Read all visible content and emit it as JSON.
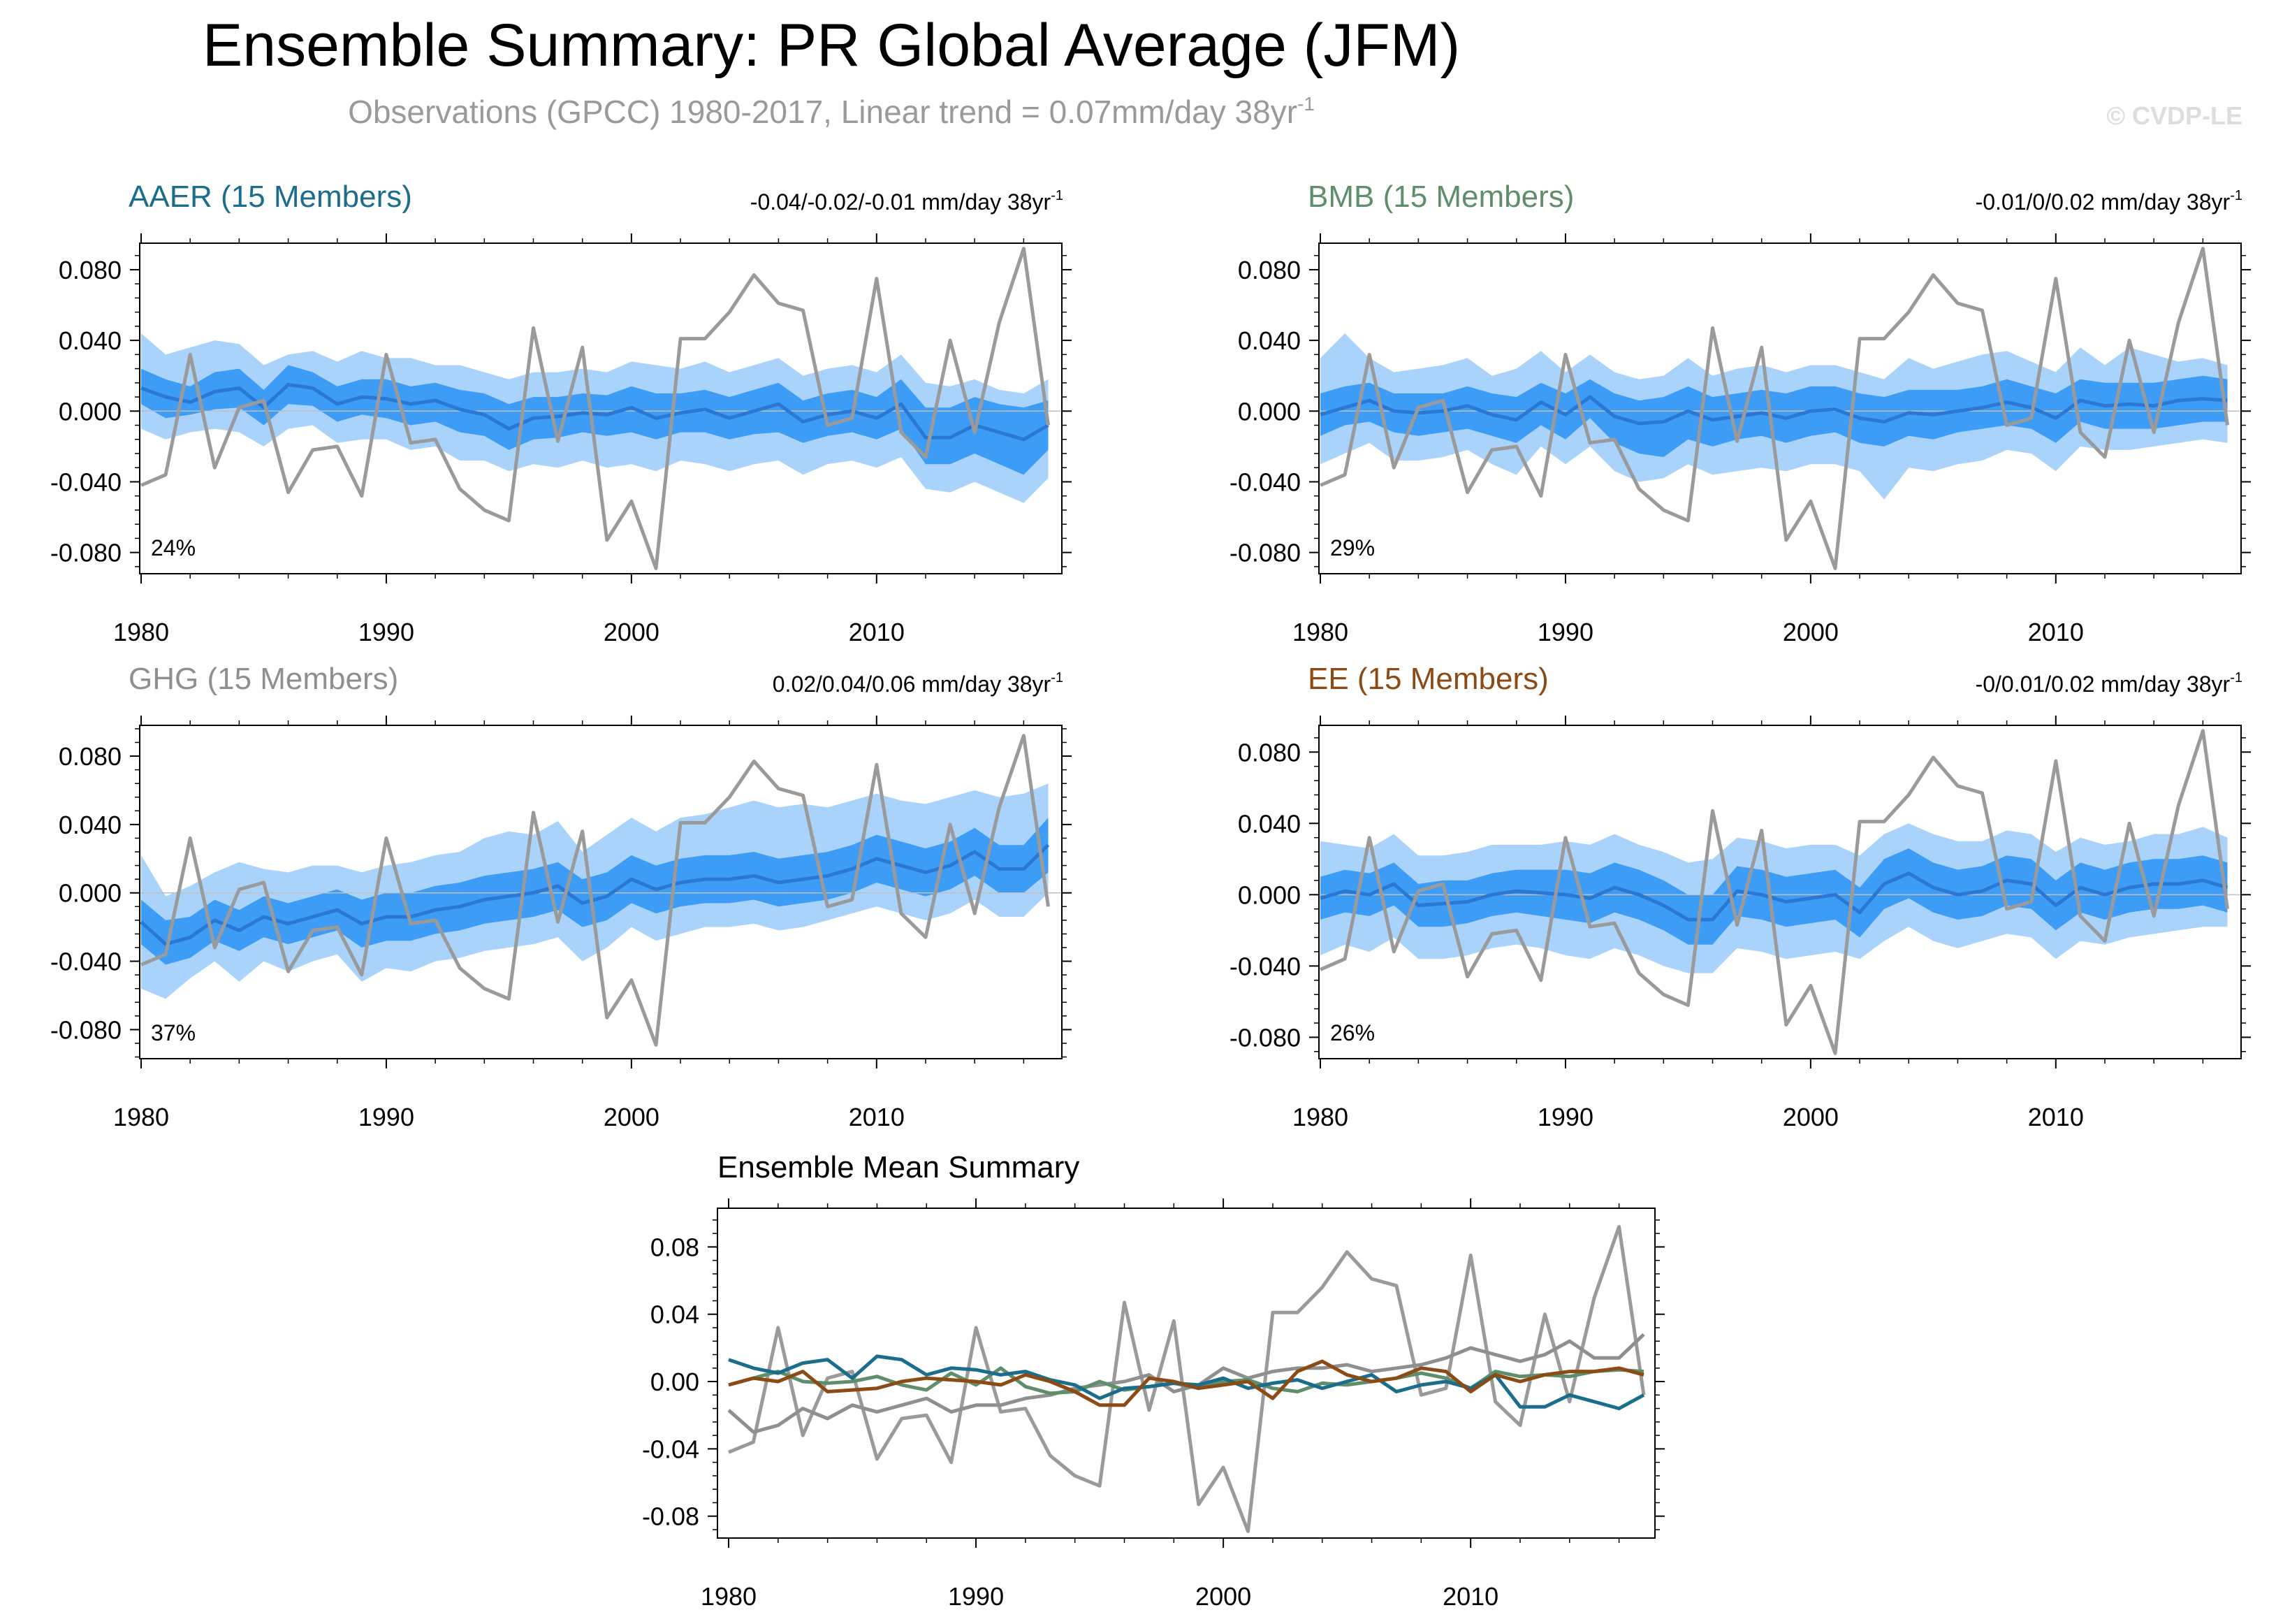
{
  "figure": {
    "title": "Ensemble Summary: PR Global Average (JFM)",
    "subtitle": "Observations (GPCC) 1980-2017, Linear trend = 0.07mm/day 38yr",
    "subtitle_sup": "-1",
    "watermark": "© CVDP-LE"
  },
  "colors": {
    "observation_line": "#9a9a9a",
    "band_outer": "#a9d3fb",
    "band_inner": "#3d9cf5",
    "ensemble_mean": "#2a78d4",
    "aaer": "#1b6d8c",
    "bmb": "#5f8f6a",
    "ghg": "#8f8f8f",
    "ee": "#8c4a14",
    "zero_line": "#bfbfbf"
  },
  "chart_data": {
    "years": [
      1980,
      1981,
      1982,
      1983,
      1984,
      1985,
      1986,
      1987,
      1988,
      1989,
      1990,
      1991,
      1992,
      1993,
      1994,
      1995,
      1996,
      1997,
      1998,
      1999,
      2000,
      2001,
      2002,
      2003,
      2004,
      2005,
      2006,
      2007,
      2008,
      2009,
      2010,
      2011,
      2012,
      2013,
      2014,
      2015,
      2016,
      2017
    ],
    "observations": [
      -0.042,
      -0.036,
      0.032,
      -0.032,
      0.002,
      0.006,
      -0.046,
      -0.022,
      -0.02,
      -0.048,
      0.032,
      -0.018,
      -0.016,
      -0.044,
      -0.056,
      -0.062,
      0.047,
      -0.017,
      0.036,
      -0.073,
      -0.051,
      -0.089,
      0.041,
      0.041,
      0.056,
      0.077,
      0.061,
      0.057,
      -0.008,
      -0.004,
      0.075,
      -0.012,
      -0.026,
      0.04,
      -0.012,
      0.05,
      0.092,
      -0.008
    ],
    "panels": [
      {
        "id": "aaer",
        "title": "AAER (15 Members)",
        "trend": "-0.04/-0.02/-0.01 mm/day 38yr",
        "trend_sup": "-1",
        "percent": "24%",
        "color_key": "aaer",
        "y_ticks": [
          "0.080",
          "0.040",
          "0.000",
          "-0.040",
          "-0.080"
        ],
        "y_tick_values": [
          0.08,
          0.04,
          0.0,
          -0.04,
          -0.08
        ],
        "ylim": [
          -0.092,
          0.095
        ],
        "x_ticks": [
          "1980",
          "1990",
          "2000",
          "2010"
        ],
        "mean": [
          0.013,
          0.008,
          0.005,
          0.011,
          0.013,
          0.002,
          0.015,
          0.013,
          0.004,
          0.008,
          0.007,
          0.004,
          0.006,
          0.001,
          -0.002,
          -0.01,
          -0.004,
          -0.003,
          -0.001,
          -0.002,
          0.002,
          -0.004,
          -0.001,
          0.001,
          -0.004,
          0.0,
          0.004,
          -0.006,
          -0.002,
          0.0,
          -0.004,
          0.004,
          -0.015,
          -0.015,
          -0.008,
          -0.012,
          -0.016,
          -0.008
        ],
        "inner_lo": [
          0.004,
          -0.004,
          -0.002,
          0.001,
          0.002,
          -0.008,
          0.004,
          0.003,
          -0.006,
          -0.002,
          -0.004,
          -0.008,
          -0.006,
          -0.012,
          -0.014,
          -0.022,
          -0.016,
          -0.015,
          -0.012,
          -0.014,
          -0.012,
          -0.016,
          -0.012,
          -0.012,
          -0.016,
          -0.013,
          -0.012,
          -0.018,
          -0.014,
          -0.012,
          -0.016,
          -0.01,
          -0.03,
          -0.03,
          -0.024,
          -0.03,
          -0.036,
          -0.022
        ],
        "inner_hi": [
          0.024,
          0.018,
          0.014,
          0.022,
          0.024,
          0.012,
          0.026,
          0.022,
          0.014,
          0.018,
          0.018,
          0.014,
          0.016,
          0.012,
          0.01,
          0.004,
          0.008,
          0.008,
          0.01,
          0.009,
          0.014,
          0.01,
          0.01,
          0.012,
          0.008,
          0.012,
          0.016,
          0.006,
          0.01,
          0.012,
          0.008,
          0.018,
          0.002,
          0.002,
          0.008,
          0.004,
          0.002,
          0.006
        ],
        "outer_lo": [
          -0.01,
          -0.016,
          -0.012,
          -0.01,
          -0.012,
          -0.02,
          -0.01,
          -0.008,
          -0.018,
          -0.016,
          -0.016,
          -0.022,
          -0.02,
          -0.028,
          -0.028,
          -0.034,
          -0.03,
          -0.032,
          -0.028,
          -0.032,
          -0.03,
          -0.034,
          -0.028,
          -0.03,
          -0.034,
          -0.03,
          -0.028,
          -0.036,
          -0.03,
          -0.028,
          -0.032,
          -0.026,
          -0.044,
          -0.046,
          -0.04,
          -0.046,
          -0.052,
          -0.038
        ],
        "outer_hi": [
          0.044,
          0.032,
          0.036,
          0.04,
          0.038,
          0.026,
          0.032,
          0.034,
          0.028,
          0.034,
          0.03,
          0.03,
          0.026,
          0.026,
          0.022,
          0.018,
          0.022,
          0.022,
          0.024,
          0.022,
          0.028,
          0.026,
          0.024,
          0.028,
          0.022,
          0.026,
          0.03,
          0.02,
          0.024,
          0.026,
          0.022,
          0.032,
          0.016,
          0.014,
          0.018,
          0.012,
          0.01,
          0.018
        ]
      },
      {
        "id": "bmb",
        "title": "BMB (15 Members)",
        "trend": "-0.01/0/0.02 mm/day 38yr",
        "trend_sup": "-1",
        "percent": "29%",
        "color_key": "bmb",
        "y_ticks": [
          "0.080",
          "0.040",
          "0.000",
          "-0.040",
          "-0.080"
        ],
        "y_tick_values": [
          0.08,
          0.04,
          0.0,
          -0.04,
          -0.08
        ],
        "ylim": [
          -0.092,
          0.095
        ],
        "x_ticks": [
          "1980",
          "1990",
          "2000",
          "2010"
        ],
        "mean": [
          -0.002,
          0.002,
          0.006,
          0.0,
          -0.001,
          0.0,
          0.003,
          -0.002,
          -0.005,
          0.005,
          -0.002,
          0.008,
          -0.003,
          -0.007,
          -0.006,
          0.0,
          -0.005,
          -0.003,
          -0.001,
          -0.004,
          0.0,
          0.001,
          -0.004,
          -0.006,
          -0.001,
          -0.002,
          0.0,
          0.002,
          0.005,
          0.002,
          -0.004,
          0.006,
          0.003,
          0.004,
          0.003,
          0.006,
          0.007,
          0.006
        ],
        "inner_lo": [
          -0.014,
          -0.008,
          -0.006,
          -0.012,
          -0.014,
          -0.012,
          -0.01,
          -0.014,
          -0.018,
          -0.008,
          -0.016,
          -0.004,
          -0.018,
          -0.024,
          -0.026,
          -0.016,
          -0.02,
          -0.016,
          -0.014,
          -0.018,
          -0.014,
          -0.012,
          -0.018,
          -0.02,
          -0.014,
          -0.016,
          -0.012,
          -0.01,
          -0.008,
          -0.01,
          -0.018,
          -0.006,
          -0.01,
          -0.01,
          -0.01,
          -0.008,
          -0.006,
          -0.006
        ],
        "inner_hi": [
          0.01,
          0.014,
          0.016,
          0.01,
          0.01,
          0.01,
          0.014,
          0.01,
          0.008,
          0.016,
          0.01,
          0.018,
          0.01,
          0.006,
          0.008,
          0.014,
          0.008,
          0.01,
          0.012,
          0.01,
          0.014,
          0.014,
          0.01,
          0.008,
          0.012,
          0.012,
          0.012,
          0.014,
          0.018,
          0.014,
          0.01,
          0.018,
          0.016,
          0.016,
          0.016,
          0.018,
          0.02,
          0.018
        ],
        "outer_lo": [
          -0.03,
          -0.024,
          -0.018,
          -0.028,
          -0.028,
          -0.026,
          -0.022,
          -0.03,
          -0.036,
          -0.02,
          -0.03,
          -0.02,
          -0.034,
          -0.04,
          -0.038,
          -0.03,
          -0.036,
          -0.034,
          -0.032,
          -0.034,
          -0.03,
          -0.03,
          -0.034,
          -0.05,
          -0.032,
          -0.034,
          -0.03,
          -0.028,
          -0.022,
          -0.024,
          -0.034,
          -0.02,
          -0.022,
          -0.022,
          -0.02,
          -0.018,
          -0.016,
          -0.018
        ],
        "outer_hi": [
          0.03,
          0.044,
          0.03,
          0.022,
          0.024,
          0.026,
          0.03,
          0.02,
          0.024,
          0.034,
          0.022,
          0.032,
          0.022,
          0.018,
          0.02,
          0.03,
          0.02,
          0.024,
          0.026,
          0.022,
          0.026,
          0.026,
          0.022,
          0.018,
          0.03,
          0.024,
          0.028,
          0.032,
          0.034,
          0.028,
          0.022,
          0.036,
          0.026,
          0.036,
          0.032,
          0.028,
          0.03,
          0.026
        ]
      },
      {
        "id": "ghg",
        "title": "GHG (15 Members)",
        "trend": "0.02/0.04/0.06 mm/day 38yr",
        "trend_sup": "-1",
        "percent": "37%",
        "color_key": "ghg",
        "y_ticks": [
          "0.080",
          "0.040",
          "0.000",
          "-0.040",
          "-0.080"
        ],
        "y_tick_values": [
          0.08,
          0.04,
          0.0,
          -0.04,
          -0.08
        ],
        "ylim": [
          -0.097,
          0.098
        ],
        "x_ticks": [
          "1980",
          "1990",
          "2000",
          "2010"
        ],
        "mean": [
          -0.017,
          -0.03,
          -0.026,
          -0.016,
          -0.022,
          -0.014,
          -0.018,
          -0.014,
          -0.01,
          -0.018,
          -0.014,
          -0.014,
          -0.01,
          -0.008,
          -0.004,
          -0.002,
          0.0,
          0.004,
          -0.006,
          -0.002,
          0.008,
          0.002,
          0.006,
          0.008,
          0.008,
          0.01,
          0.006,
          0.008,
          0.01,
          0.014,
          0.02,
          0.016,
          0.012,
          0.016,
          0.024,
          0.014,
          0.014,
          0.028
        ],
        "inner_lo": [
          -0.03,
          -0.042,
          -0.038,
          -0.028,
          -0.034,
          -0.026,
          -0.03,
          -0.026,
          -0.022,
          -0.032,
          -0.028,
          -0.028,
          -0.024,
          -0.022,
          -0.018,
          -0.016,
          -0.014,
          -0.01,
          -0.02,
          -0.016,
          -0.006,
          -0.012,
          -0.008,
          -0.006,
          -0.006,
          -0.004,
          -0.008,
          -0.006,
          -0.004,
          0.0,
          0.006,
          0.002,
          -0.002,
          0.002,
          0.01,
          0.0,
          0.0,
          0.012
        ],
        "inner_hi": [
          -0.004,
          -0.016,
          -0.014,
          -0.004,
          -0.01,
          -0.002,
          -0.006,
          -0.002,
          0.002,
          -0.004,
          0.0,
          0.0,
          0.004,
          0.006,
          0.01,
          0.012,
          0.014,
          0.018,
          0.008,
          0.012,
          0.022,
          0.016,
          0.02,
          0.022,
          0.022,
          0.024,
          0.02,
          0.022,
          0.024,
          0.028,
          0.034,
          0.03,
          0.026,
          0.03,
          0.038,
          0.028,
          0.028,
          0.044
        ],
        "outer_lo": [
          -0.056,
          -0.062,
          -0.05,
          -0.04,
          -0.052,
          -0.04,
          -0.046,
          -0.04,
          -0.036,
          -0.052,
          -0.044,
          -0.046,
          -0.04,
          -0.038,
          -0.034,
          -0.032,
          -0.03,
          -0.026,
          -0.04,
          -0.032,
          -0.02,
          -0.028,
          -0.024,
          -0.02,
          -0.02,
          -0.018,
          -0.022,
          -0.02,
          -0.016,
          -0.012,
          -0.008,
          -0.012,
          -0.016,
          -0.012,
          -0.004,
          -0.014,
          -0.014,
          0.0
        ],
        "outer_hi": [
          0.022,
          -0.002,
          0.004,
          0.012,
          0.018,
          0.014,
          0.012,
          0.016,
          0.016,
          0.012,
          0.016,
          0.018,
          0.022,
          0.024,
          0.032,
          0.036,
          0.034,
          0.042,
          0.024,
          0.034,
          0.044,
          0.036,
          0.044,
          0.046,
          0.05,
          0.054,
          0.05,
          0.052,
          0.05,
          0.054,
          0.058,
          0.054,
          0.052,
          0.056,
          0.06,
          0.056,
          0.058,
          0.064
        ]
      },
      {
        "id": "ee",
        "title": "EE (15 Members)",
        "trend": "-0/0.01/0.02 mm/day 38yr",
        "trend_sup": "-1",
        "percent": "26%",
        "color_key": "ee",
        "y_ticks": [
          "0.080",
          "0.040",
          "0.000",
          "-0.040",
          "-0.080"
        ],
        "y_tick_values": [
          0.08,
          0.04,
          0.0,
          -0.04,
          -0.08
        ],
        "ylim": [
          -0.092,
          0.095
        ],
        "x_ticks": [
          "1980",
          "1990",
          "2000",
          "2010"
        ],
        "mean": [
          -0.002,
          0.002,
          0.0,
          0.006,
          -0.006,
          -0.005,
          -0.004,
          0.0,
          0.002,
          0.001,
          0.0,
          -0.002,
          0.004,
          0.0,
          -0.006,
          -0.014,
          -0.014,
          0.002,
          0.0,
          -0.004,
          -0.002,
          0.0,
          -0.01,
          0.006,
          0.012,
          0.004,
          0.0,
          0.002,
          0.008,
          0.006,
          -0.006,
          0.004,
          0.0,
          0.004,
          0.006,
          0.006,
          0.008,
          0.004
        ],
        "inner_lo": [
          -0.014,
          -0.01,
          -0.012,
          -0.006,
          -0.018,
          -0.018,
          -0.016,
          -0.012,
          -0.01,
          -0.012,
          -0.014,
          -0.016,
          -0.01,
          -0.014,
          -0.02,
          -0.028,
          -0.028,
          -0.012,
          -0.014,
          -0.018,
          -0.016,
          -0.014,
          -0.024,
          -0.008,
          -0.002,
          -0.01,
          -0.014,
          -0.012,
          -0.006,
          -0.008,
          -0.02,
          -0.01,
          -0.014,
          -0.01,
          -0.008,
          -0.008,
          -0.006,
          -0.01
        ],
        "inner_hi": [
          0.01,
          0.014,
          0.012,
          0.018,
          0.006,
          0.008,
          0.008,
          0.012,
          0.014,
          0.014,
          0.014,
          0.012,
          0.018,
          0.014,
          0.008,
          0.0,
          0.0,
          0.016,
          0.014,
          0.01,
          0.012,
          0.014,
          0.004,
          0.02,
          0.026,
          0.018,
          0.014,
          0.016,
          0.022,
          0.02,
          0.008,
          0.018,
          0.014,
          0.018,
          0.02,
          0.02,
          0.022,
          0.018
        ],
        "outer_lo": [
          -0.034,
          -0.028,
          -0.032,
          -0.024,
          -0.036,
          -0.036,
          -0.034,
          -0.03,
          -0.028,
          -0.03,
          -0.034,
          -0.036,
          -0.03,
          -0.034,
          -0.04,
          -0.044,
          -0.044,
          -0.03,
          -0.032,
          -0.036,
          -0.034,
          -0.032,
          -0.036,
          -0.026,
          -0.018,
          -0.026,
          -0.03,
          -0.026,
          -0.022,
          -0.024,
          -0.036,
          -0.026,
          -0.028,
          -0.024,
          -0.022,
          -0.02,
          -0.018,
          -0.018
        ],
        "outer_hi": [
          0.03,
          0.028,
          0.026,
          0.034,
          0.022,
          0.022,
          0.024,
          0.028,
          0.028,
          0.028,
          0.03,
          0.028,
          0.034,
          0.028,
          0.024,
          0.018,
          0.02,
          0.032,
          0.03,
          0.026,
          0.028,
          0.028,
          0.022,
          0.034,
          0.04,
          0.034,
          0.03,
          0.03,
          0.036,
          0.034,
          0.024,
          0.032,
          0.028,
          0.03,
          0.034,
          0.034,
          0.038,
          0.032
        ]
      }
    ],
    "summary": {
      "title": "Ensemble Mean Summary",
      "y_ticks": [
        "0.08",
        "0.04",
        "0.00",
        "-0.04",
        "-0.08"
      ],
      "y_tick_values": [
        0.08,
        0.04,
        0.0,
        -0.04,
        -0.08
      ],
      "ylim": [
        -0.093,
        0.103
      ],
      "x_ticks": [
        "1980",
        "1990",
        "2000",
        "2010"
      ]
    }
  }
}
